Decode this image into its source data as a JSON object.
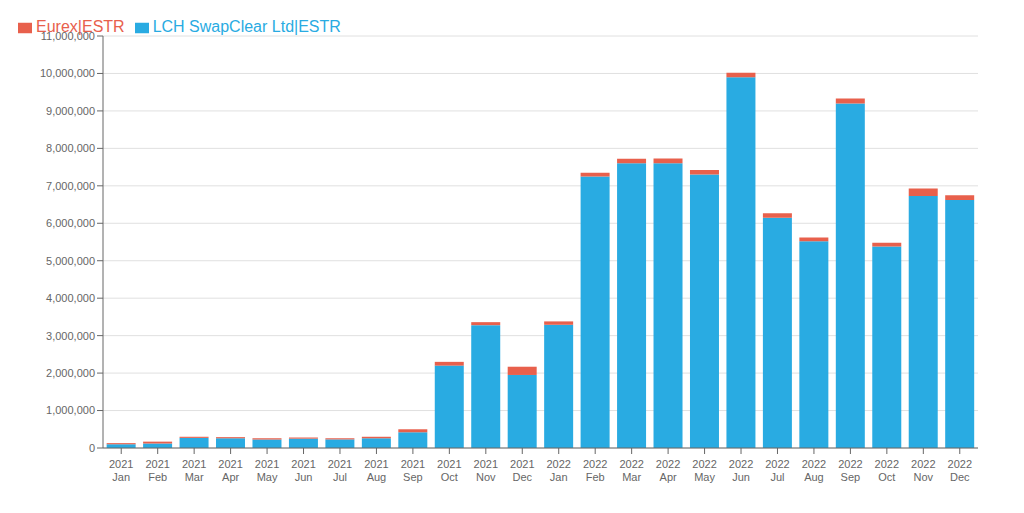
{
  "chart_data": {
    "type": "bar",
    "stacked": true,
    "grid": true,
    "legend": "upper left",
    "categories": [
      "2021\nJan",
      "2021\nFeb",
      "2021\nMar",
      "2021\nApr",
      "2021\nMay",
      "2021\nJun",
      "2021\nJul",
      "2021\nAug",
      "2021\nSep",
      "2021\nOct",
      "2021\nNov",
      "2021\nDec",
      "2022\nJan",
      "2022\nFeb",
      "2022\nMar",
      "2022\nApr",
      "2022\nMay",
      "2022\nJun",
      "2022\nJul",
      "2022\nAug",
      "2022\nSep",
      "2022\nOct",
      "2022\nNov",
      "2022\nDec"
    ],
    "series": [
      {
        "name": "LCH SwapClear Ltd|ESTR",
        "color": "#29ABE2",
        "values": [
          100000,
          120000,
          270000,
          260000,
          230000,
          250000,
          230000,
          260000,
          420000,
          2200000,
          3280000,
          1950000,
          3290000,
          7250000,
          7600000,
          7600000,
          7300000,
          9900000,
          6150000,
          5520000,
          9200000,
          5380000,
          6730000,
          6620000
        ]
      },
      {
        "name": "Eurex|ESTR",
        "color": "#E8604C",
        "values": [
          30000,
          50000,
          30000,
          30000,
          30000,
          30000,
          30000,
          40000,
          80000,
          100000,
          80000,
          220000,
          90000,
          100000,
          120000,
          130000,
          120000,
          120000,
          120000,
          100000,
          130000,
          100000,
          200000,
          130000
        ]
      }
    ],
    "ylim": [
      0,
      11000000
    ],
    "yticks": [
      0,
      {
        "value": 1000000,
        "label": "1,000,000"
      },
      {
        "value": 2000000,
        "label": "2,000,000"
      },
      {
        "value": 3000000,
        "label": "3,000,000"
      },
      {
        "value": 4000000,
        "label": "4,000,000"
      },
      {
        "value": 5000000,
        "label": "5,000,000"
      },
      {
        "value": 6000000,
        "label": "6,000,000"
      },
      {
        "value": 7000000,
        "label": "7,000,000"
      },
      {
        "value": 8000000,
        "label": "8,000,000"
      },
      {
        "value": 9000000,
        "label": "9,000,000"
      },
      {
        "value": 10000000,
        "label": "10,000,000"
      },
      {
        "value": 11000000,
        "label": "11,000,000"
      }
    ]
  }
}
